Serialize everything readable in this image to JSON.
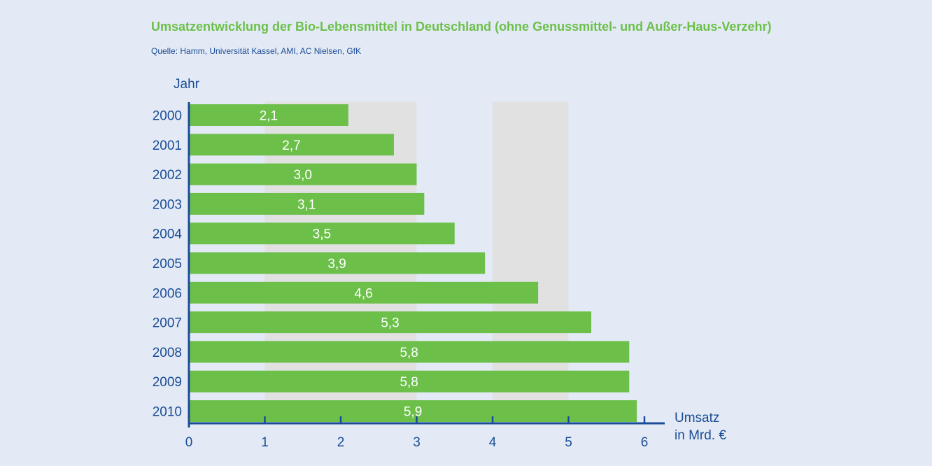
{
  "header": {
    "title": "Umsatzentwicklung der Bio-Lebensmittel in Deutschland (ohne Genussmittel- und Außer-Haus-Verzehr)",
    "source": "Quelle: Hamm, Universität Kassel, AMI, AC Nielsen, GfK"
  },
  "colors": {
    "background": "#e3eaf5",
    "bar": "#6cc04a",
    "band": "#e1e1e1",
    "axis": "#1a4c96",
    "title": "#6cc04a",
    "bar_label": "#ffffff"
  },
  "chart_data": {
    "type": "bar",
    "orientation": "horizontal",
    "title": "Umsatzentwicklung der Bio-Lebensmittel in Deutschland (ohne Genussmittel- und Außer-Haus-Verzehr)",
    "ylabel": "Jahr",
    "xlabel": "Umsatz\nin Mrd. €",
    "categories": [
      "2000",
      "2001",
      "2002",
      "2003",
      "2004",
      "2005",
      "2006",
      "2007",
      "2008",
      "2009",
      "2010"
    ],
    "values": [
      2.1,
      2.7,
      3.0,
      3.1,
      3.5,
      3.9,
      4.6,
      5.3,
      5.8,
      5.8,
      5.9
    ],
    "value_labels": [
      "2,1",
      "2,7",
      "3,0",
      "3,1",
      "3,5",
      "3,9",
      "4,6",
      "5,3",
      "5,8",
      "5,8",
      "5,9"
    ],
    "xticks": [
      "0",
      "1",
      "2",
      "3",
      "4",
      "5",
      "6"
    ],
    "xlim": [
      0,
      6
    ],
    "shaded_bands": [
      [
        1,
        2
      ],
      [
        2,
        3
      ],
      [
        4,
        5
      ]
    ],
    "legend": "none"
  }
}
